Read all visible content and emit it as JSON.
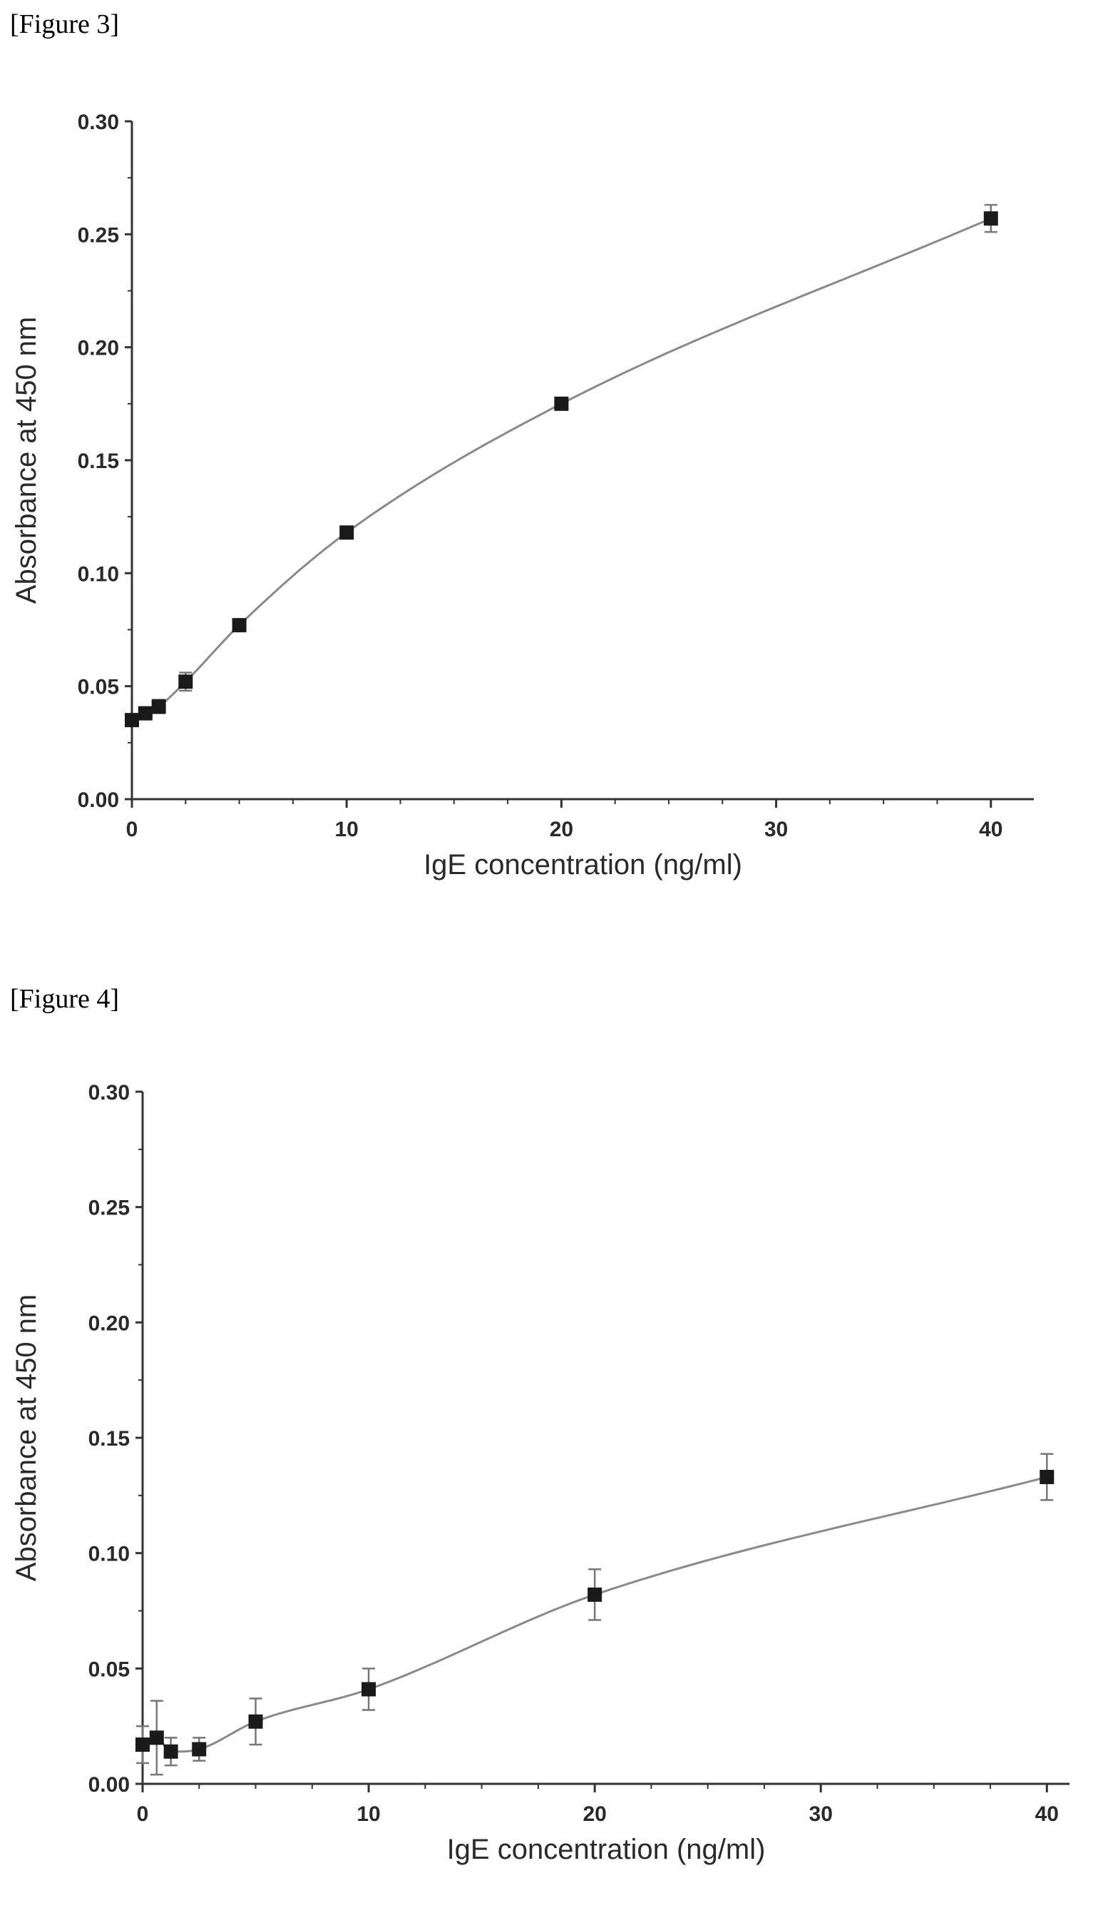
{
  "figures": [
    {
      "caption": "[Figure 3]"
    },
    {
      "caption": "[Figure 4]"
    }
  ],
  "chart_data": [
    {
      "type": "scatter",
      "caption": "[Figure 3]",
      "xlabel": "IgE concentration (ng/ml)",
      "ylabel": "Absorbance at 450 nm",
      "xlim": [
        0,
        42
      ],
      "ylim": [
        0,
        0.3
      ],
      "xticks": [
        0,
        10,
        20,
        30,
        40
      ],
      "yticks": [
        0.0,
        0.05,
        0.1,
        0.15,
        0.2,
        0.25,
        0.3
      ],
      "ytick_labels": [
        "0.00",
        "0.05",
        "0.10",
        "0.15",
        "0.20",
        "0.25",
        "0.30"
      ],
      "grid": false,
      "legend": "none",
      "fit_curve": true,
      "colors": {
        "points": "#1a1a1a",
        "curve": "#8a8a8a",
        "error_bars": "#777777"
      },
      "series": [
        {
          "x": [
            0,
            0.625,
            1.25,
            2.5,
            5,
            10,
            20,
            40
          ],
          "y": [
            0.035,
            0.038,
            0.041,
            0.052,
            0.077,
            0.118,
            0.175,
            0.257
          ],
          "error": [
            0.002,
            0.002,
            0.003,
            0.004,
            0.002,
            0.002,
            0.002,
            0.006
          ]
        }
      ]
    },
    {
      "type": "scatter",
      "caption": "[Figure 4]",
      "xlabel": "IgE concentration (ng/ml)",
      "ylabel": "Absorbance at 450 nm",
      "xlim": [
        0,
        41
      ],
      "ylim": [
        0,
        0.3
      ],
      "xticks": [
        0,
        10,
        20,
        30,
        40
      ],
      "yticks": [
        0.0,
        0.05,
        0.1,
        0.15,
        0.2,
        0.25,
        0.3
      ],
      "ytick_labels": [
        "0.00",
        "0.05",
        "0.10",
        "0.15",
        "0.20",
        "0.25",
        "0.30"
      ],
      "grid": false,
      "legend": "none",
      "fit_curve": true,
      "colors": {
        "points": "#1a1a1a",
        "curve": "#8a8a8a",
        "error_bars": "#777777"
      },
      "series": [
        {
          "x": [
            0,
            0.625,
            1.25,
            2.5,
            5,
            10,
            20,
            40
          ],
          "y": [
            0.017,
            0.02,
            0.014,
            0.015,
            0.027,
            0.041,
            0.082,
            0.133
          ],
          "error": [
            0.008,
            0.016,
            0.006,
            0.005,
            0.01,
            0.009,
            0.011,
            0.01
          ]
        }
      ]
    }
  ]
}
